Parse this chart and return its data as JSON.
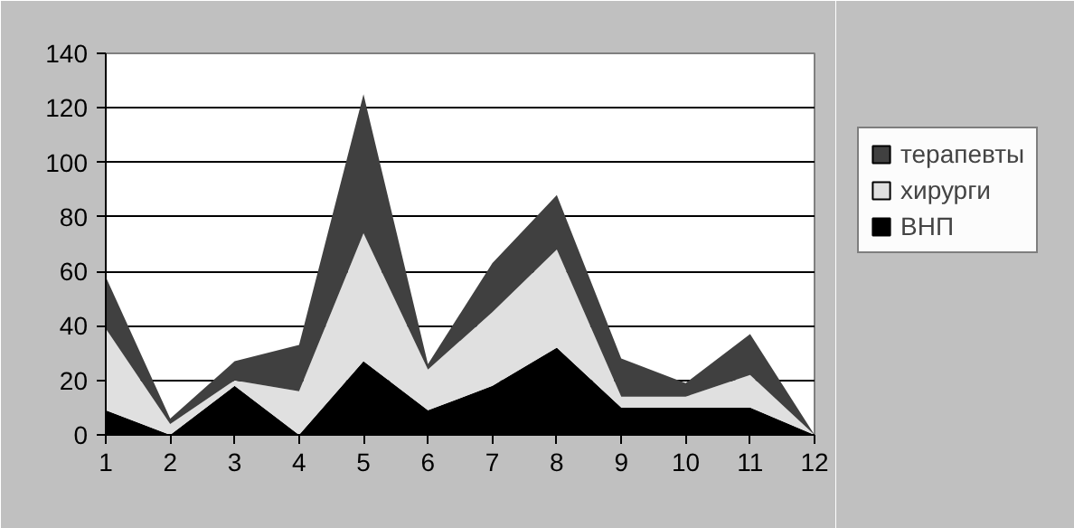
{
  "chart_data": {
    "type": "area",
    "stacked": true,
    "x": [
      1,
      2,
      3,
      4,
      5,
      6,
      7,
      8,
      9,
      10,
      11,
      12
    ],
    "xlim": [
      1,
      12
    ],
    "xticks": [
      1,
      2,
      3,
      4,
      5,
      6,
      7,
      8,
      9,
      10,
      11,
      12
    ],
    "ylim": [
      0,
      140
    ],
    "yticks": [
      0,
      20,
      40,
      60,
      80,
      100,
      120,
      140
    ],
    "grid": "y",
    "legend": "right",
    "series": [
      {
        "name": "ВНП",
        "color": "#000000",
        "values": [
          9,
          0,
          18,
          0,
          27,
          9,
          18,
          32,
          10,
          10,
          10,
          0
        ]
      },
      {
        "name": "хирурги",
        "color": "#e0e0e0",
        "values": [
          30,
          4,
          2,
          16,
          47,
          15,
          27,
          36,
          4,
          4,
          12,
          0
        ]
      },
      {
        "name": "терапевты",
        "color": "#404040",
        "values": [
          19,
          2,
          7,
          17,
          51,
          2,
          18,
          20,
          14,
          5,
          15,
          0
        ]
      }
    ]
  }
}
